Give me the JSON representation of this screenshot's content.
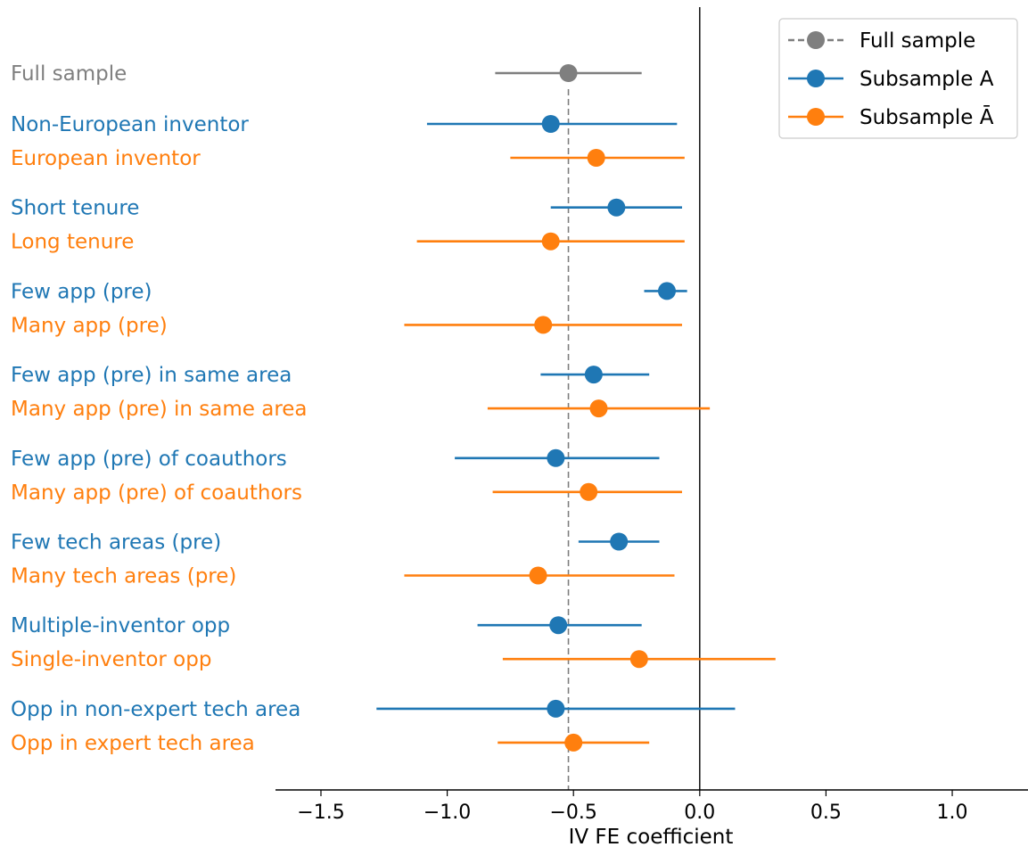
{
  "chart_data": {
    "type": "forest",
    "xlabel": "IV FE coefficient",
    "xlim": [
      -1.68,
      1.3
    ],
    "xticks": [
      -1.5,
      -1.0,
      -0.5,
      0.0,
      0.5,
      1.0
    ],
    "xtick_labels": [
      "−1.5",
      "−1.0",
      "−0.5",
      "0.0",
      "0.5",
      "1.0"
    ],
    "reference_lines": {
      "zero": 0.0,
      "full_sample_estimate": -0.52
    },
    "colors": {
      "full": "#7f7f7f",
      "a": "#1f77b4",
      "abar": "#ff7f0e"
    },
    "legend": {
      "placement": "top-right",
      "entries": [
        {
          "label": "Full sample",
          "group": "full"
        },
        {
          "label": "Subsample A",
          "group": "a"
        },
        {
          "label": "Subsample Ā",
          "group": "abar"
        }
      ]
    },
    "rows": [
      {
        "label": "Full sample",
        "group": "full",
        "estimate": -0.52,
        "ci_low": -0.81,
        "ci_high": -0.23
      },
      {
        "label": "Non-European inventor",
        "group": "a",
        "estimate": -0.59,
        "ci_low": -1.08,
        "ci_high": -0.09
      },
      {
        "label": "European inventor",
        "group": "abar",
        "estimate": -0.41,
        "ci_low": -0.75,
        "ci_high": -0.06
      },
      {
        "label": "Short tenure",
        "group": "a",
        "estimate": -0.33,
        "ci_low": -0.59,
        "ci_high": -0.07
      },
      {
        "label": "Long tenure",
        "group": "abar",
        "estimate": -0.59,
        "ci_low": -1.12,
        "ci_high": -0.06
      },
      {
        "label": "Few app (pre)",
        "group": "a",
        "estimate": -0.13,
        "ci_low": -0.22,
        "ci_high": -0.05
      },
      {
        "label": "Many app (pre)",
        "group": "abar",
        "estimate": -0.62,
        "ci_low": -1.17,
        "ci_high": -0.07
      },
      {
        "label": "Few app (pre) in same area",
        "group": "a",
        "estimate": -0.42,
        "ci_low": -0.63,
        "ci_high": -0.2
      },
      {
        "label": "Many app (pre) in same area",
        "group": "abar",
        "estimate": -0.4,
        "ci_low": -0.84,
        "ci_high": 0.04
      },
      {
        "label": "Few app (pre) of coauthors",
        "group": "a",
        "estimate": -0.57,
        "ci_low": -0.97,
        "ci_high": -0.16
      },
      {
        "label": "Many app (pre) of coauthors",
        "group": "abar",
        "estimate": -0.44,
        "ci_low": -0.82,
        "ci_high": -0.07
      },
      {
        "label": "Few tech areas (pre)",
        "group": "a",
        "estimate": -0.32,
        "ci_low": -0.48,
        "ci_high": -0.16
      },
      {
        "label": "Many tech areas (pre)",
        "group": "abar",
        "estimate": -0.64,
        "ci_low": -1.17,
        "ci_high": -0.1
      },
      {
        "label": "Multiple-inventor opp",
        "group": "a",
        "estimate": -0.56,
        "ci_low": -0.88,
        "ci_high": -0.23
      },
      {
        "label": "Single-inventor opp",
        "group": "abar",
        "estimate": -0.24,
        "ci_low": -0.78,
        "ci_high": 0.3
      },
      {
        "label": "Opp in non-expert tech area",
        "group": "a",
        "estimate": -0.57,
        "ci_low": -1.28,
        "ci_high": 0.14
      },
      {
        "label": "Opp in expert tech area",
        "group": "abar",
        "estimate": -0.5,
        "ci_low": -0.8,
        "ci_high": -0.2
      }
    ]
  }
}
